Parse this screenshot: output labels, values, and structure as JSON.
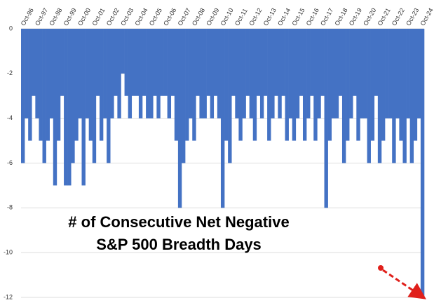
{
  "chart_data": {
    "type": "bar",
    "annotations": [
      "# of Consecutive Net Negative",
      "S&P 500 Breadth Days"
    ],
    "categories": [
      "Oct-96",
      null,
      null,
      null,
      "Oct-97",
      null,
      null,
      null,
      "Oct-98",
      null,
      null,
      null,
      "Oct-99",
      null,
      null,
      null,
      "Oct-00",
      null,
      null,
      null,
      "Oct-01",
      null,
      null,
      null,
      "Oct-02",
      null,
      null,
      null,
      "Oct-03",
      null,
      null,
      null,
      "Oct-04",
      null,
      null,
      null,
      "Oct-05",
      null,
      null,
      null,
      "Oct-06",
      null,
      null,
      null,
      "Oct-07",
      null,
      null,
      null,
      "Oct-08",
      null,
      null,
      null,
      "Oct-09",
      null,
      null,
      null,
      "Oct-10",
      null,
      null,
      null,
      "Oct-11",
      null,
      null,
      null,
      "Oct-12",
      null,
      null,
      null,
      "Oct-13",
      null,
      null,
      null,
      "Oct-14",
      null,
      null,
      null,
      "Oct-15",
      null,
      null,
      null,
      "Oct-16",
      null,
      null,
      null,
      "Oct-17",
      null,
      null,
      null,
      "Oct-18",
      null,
      null,
      null,
      "Oct-19",
      null,
      null,
      null,
      "Oct-20",
      null,
      null,
      null,
      "Oct-21",
      null,
      null,
      null,
      "Oct-22",
      null,
      null,
      null,
      "Oct-23",
      null,
      null,
      null,
      "Oct-24"
    ],
    "values": [
      -6,
      -4,
      -5,
      -3,
      -4,
      -5,
      -6,
      -5,
      -4,
      -7,
      -5,
      -3,
      -7,
      -7,
      -6,
      -5,
      -4,
      -7,
      -4,
      -5,
      -6,
      -3,
      -5,
      -4,
      -6,
      -4,
      -3,
      -4,
      -2,
      -3,
      -4,
      -3,
      -3,
      -4,
      -3,
      -4,
      -4,
      -3,
      -4,
      -3,
      -3,
      -4,
      -3,
      -5,
      -8,
      -6,
      -5,
      -4,
      -5,
      -3,
      -4,
      -4,
      -3,
      -4,
      -3,
      -4,
      -8,
      -5,
      -6,
      -3,
      -4,
      -5,
      -4,
      -3,
      -4,
      -5,
      -3,
      -4,
      -3,
      -5,
      -4,
      -3,
      -4,
      -3,
      -5,
      -4,
      -5,
      -4,
      -3,
      -5,
      -4,
      -3,
      -5,
      -4,
      -3,
      -8,
      -5,
      -4,
      -4,
      -3,
      -6,
      -5,
      -4,
      -3,
      -5,
      -4,
      -4,
      -6,
      -5,
      -3,
      -6,
      -5,
      -4,
      -4,
      -6,
      -4,
      -5,
      -6,
      -4,
      -6,
      -5,
      -4,
      -12
    ],
    "color": "#4472c4",
    "ylim": [
      -12,
      0
    ],
    "yticks": [
      0,
      -2,
      -4,
      -6,
      -8,
      -10,
      -12
    ],
    "grid": true
  }
}
